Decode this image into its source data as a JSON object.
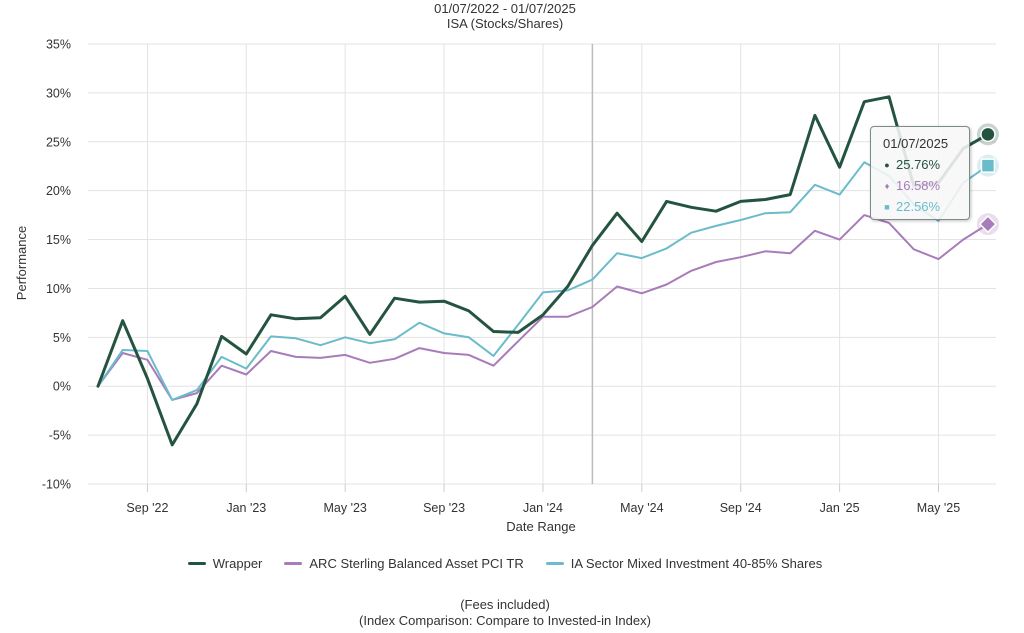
{
  "header": {
    "date_range": "01/07/2022 - 01/07/2025",
    "subtitle": "ISA (Stocks/Shares)"
  },
  "footer": {
    "fees": "(Fees included)",
    "comparison": "(Index Comparison: Compare to Invested-in Index)"
  },
  "tooltip": {
    "date": "01/07/2025",
    "rows": [
      {
        "symbol": "●",
        "value": "25.76%",
        "color": "#245440"
      },
      {
        "symbol": "♦",
        "value": "16.58%",
        "color": "#a87bba"
      },
      {
        "symbol": "■",
        "value": "22.56%",
        "color": "#6bbccb"
      }
    ]
  },
  "legend": [
    {
      "label": "Wrapper",
      "color": "#245440"
    },
    {
      "label": "ARC Sterling Balanced Asset PCI TR",
      "color": "#a87bba"
    },
    {
      "label": "IA Sector Mixed Investment 40-85% Shares",
      "color": "#6bbccb"
    }
  ],
  "chart_data": {
    "type": "line",
    "xlabel": "Date Range",
    "ylabel": "Performance",
    "ylim": [
      -10,
      35
    ],
    "yticks": [
      -10,
      -5,
      0,
      5,
      10,
      15,
      20,
      25,
      30,
      35
    ],
    "ytick_labels": [
      "-10%",
      "-5%",
      "0%",
      "5%",
      "10%",
      "15%",
      "20%",
      "25%",
      "30%",
      "35%"
    ],
    "x_tick_labels": [
      "Sep '22",
      "Jan '23",
      "May '23",
      "Sep '23",
      "Jan '24",
      "May '24",
      "Sep '24",
      "Jan '25",
      "May '25"
    ],
    "x_tick_indices": [
      2,
      6,
      10,
      14,
      18,
      22,
      26,
      30,
      34
    ],
    "x_count": 37,
    "crosshair_index": 20,
    "grid": true,
    "legend_position": "bottom",
    "series": [
      {
        "name": "Wrapper",
        "color": "#245440",
        "marker": "circle",
        "values": [
          0,
          6.7,
          0.8,
          -6.0,
          -1.8,
          5.1,
          3.3,
          7.3,
          6.9,
          7.0,
          9.2,
          5.3,
          9.0,
          8.6,
          8.7,
          7.7,
          5.6,
          5.5,
          7.3,
          10.2,
          14.4,
          17.7,
          14.8,
          18.9,
          18.3,
          17.9,
          18.9,
          19.1,
          19.6,
          27.7,
          22.4,
          29.1,
          29.6,
          20.5,
          20.8,
          24.3,
          25.76
        ]
      },
      {
        "name": "ARC Sterling Balanced Asset PCI TR",
        "color": "#a87bba",
        "marker": "diamond",
        "values": [
          0,
          3.4,
          2.7,
          -1.4,
          -0.7,
          2.1,
          1.2,
          3.6,
          3.0,
          2.9,
          3.2,
          2.4,
          2.8,
          3.9,
          3.4,
          3.2,
          2.1,
          4.6,
          7.1,
          7.1,
          8.1,
          10.2,
          9.5,
          10.4,
          11.8,
          12.7,
          13.2,
          13.8,
          13.6,
          15.9,
          15.0,
          17.5,
          16.7,
          14.0,
          13.0,
          15.0,
          16.58
        ]
      },
      {
        "name": "IA Sector Mixed Investment 40-85% Shares",
        "color": "#6bbccb",
        "marker": "square",
        "values": [
          0,
          3.7,
          3.6,
          -1.4,
          -0.4,
          3.0,
          1.8,
          5.1,
          4.9,
          4.2,
          5.0,
          4.4,
          4.8,
          6.5,
          5.4,
          5.0,
          3.1,
          6.3,
          9.6,
          9.8,
          10.9,
          13.6,
          13.1,
          14.1,
          15.7,
          16.4,
          17.0,
          17.7,
          17.8,
          20.6,
          19.6,
          22.9,
          21.5,
          18.6,
          16.9,
          20.8,
          22.56
        ]
      }
    ]
  }
}
